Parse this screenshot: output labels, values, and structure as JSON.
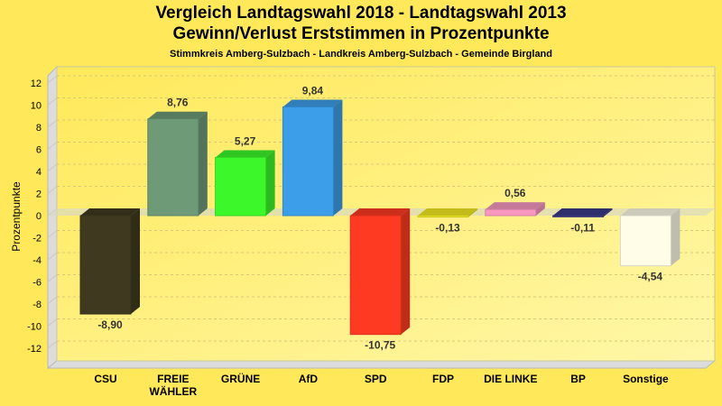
{
  "chart_data": {
    "type": "bar",
    "title": "Vergleich Landtagswahl 2018 - Landtagswahl 2013",
    "subtitle": "Gewinn/Verlust Erststimmen in Prozentpunkte",
    "subtitle2": "Stimmkreis Amberg-Sulzbach - Landkreis Amberg-Sulzbach - Gemeinde Birgland",
    "ylabel": "Prozentpunkte",
    "xlabel": "",
    "ylim": [
      -13,
      13
    ],
    "yticks": [
      12,
      10,
      8,
      6,
      4,
      2,
      0,
      -2,
      -4,
      -6,
      -8,
      -10,
      -12
    ],
    "grid": true,
    "categories": [
      "CSU",
      "FREIE WÄHLER",
      "GRÜNE",
      "AfD",
      "SPD",
      "FDP",
      "DIE LINKE",
      "BP",
      "Sonstige"
    ],
    "values": [
      -8.9,
      8.76,
      5.27,
      9.84,
      -10.75,
      -0.13,
      0.56,
      -0.11,
      -4.54
    ],
    "data_labels": [
      "-8,90",
      "8,76",
      "5,27",
      "9,84",
      "-10,75",
      "-0,13",
      "0,56",
      "-0,11",
      "-4,54"
    ],
    "colors": [
      "#3f3a1f",
      "#6e9a78",
      "#3cf82a",
      "#3c9ee8",
      "#ff3a22",
      "#f2ea20",
      "#f898c0",
      "#3a3a88",
      "#fffce8"
    ]
  }
}
